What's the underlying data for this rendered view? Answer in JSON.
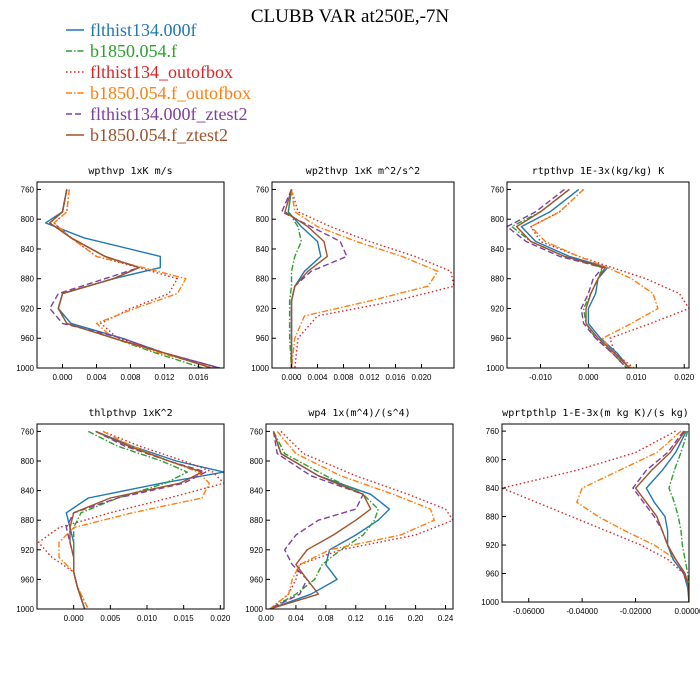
{
  "title": "CLUBB VAR at250E,-7N",
  "legend": [
    {
      "label": "flthist134.000f",
      "color": "#1f77b4",
      "dash": "solid"
    },
    {
      "label": "b1850.054.f",
      "color": "#2ca02c",
      "dash": "dashdot"
    },
    {
      "label": "flthist134_outofbox",
      "color": "#d62728",
      "dash": "dot"
    },
    {
      "label": "b1850.054.f_outofbox",
      "color": "#ff7f0e",
      "dash": "dashdot"
    },
    {
      "label": "flthist134.000f_ztest2",
      "color": "#7f3fa0",
      "dash": "dash"
    },
    {
      "label": "b1850.054.f_ztest2",
      "color": "#a0522d",
      "dash": "solid"
    }
  ],
  "chart_data": [
    {
      "type": "line",
      "title": "wpthvp  1xK m/s",
      "xlim": [
        -0.003,
        0.019
      ],
      "ylim": [
        1000,
        750
      ],
      "xticks": [
        0.0,
        0.004,
        0.008,
        0.012,
        0.016
      ],
      "xtick_labels": [
        "0.000",
        "0.004",
        "0.008",
        "0.012",
        "0.016"
      ],
      "yticks": [
        760,
        800,
        840,
        880,
        920,
        960,
        1000
      ],
      "y": [
        760,
        790,
        805,
        825,
        850,
        865,
        880,
        900,
        920,
        940,
        960,
        980,
        1000
      ],
      "series": [
        {
          "values": [
            0.0005,
            0.0,
            -0.002,
            0.0025,
            0.0115,
            0.0115,
            0.006,
            0.0,
            -0.0005,
            0.001,
            0.007,
            0.012,
            0.0185
          ]
        },
        {
          "values": [
            0.0005,
            0.0,
            -0.0015,
            0.001,
            0.005,
            0.009,
            0.006,
            0.0,
            -0.0005,
            0.0005,
            0.006,
            0.011,
            0.0165
          ]
        },
        {
          "values": [
            0.0008,
            0.0005,
            -0.001,
            0.001,
            0.004,
            0.009,
            0.0135,
            0.0125,
            0.008,
            0.0045,
            0.0065,
            0.012,
            0.0185
          ]
        },
        {
          "values": [
            0.0008,
            0.0005,
            -0.001,
            0.001,
            0.004,
            0.0095,
            0.0145,
            0.0135,
            0.0085,
            0.004,
            0.006,
            0.0115,
            0.018
          ]
        },
        {
          "values": [
            0.0005,
            0.0,
            -0.0015,
            0.001,
            0.005,
            0.009,
            0.005,
            -0.0005,
            -0.0015,
            0.0,
            0.007,
            0.012,
            0.0185
          ]
        },
        {
          "values": [
            0.0005,
            0.0,
            -0.0015,
            0.001,
            0.005,
            0.009,
            0.006,
            0.0,
            -0.0005,
            0.0005,
            0.006,
            0.012,
            0.0175
          ]
        }
      ]
    },
    {
      "type": "line",
      "title": "wp2thvp  1xK m^2/s^2",
      "xlim": [
        -0.003,
        0.025
      ],
      "ylim": [
        1000,
        750
      ],
      "xticks": [
        0.0,
        0.004,
        0.008,
        0.012,
        0.016,
        0.02
      ],
      "xtick_labels": [
        "0.000",
        "0.004",
        "0.008",
        "0.012",
        "0.016",
        "0.020"
      ],
      "yticks": [
        760,
        800,
        840,
        880,
        920,
        960,
        1000
      ],
      "y": [
        760,
        790,
        810,
        830,
        850,
        870,
        890,
        910,
        930,
        960,
        1000
      ],
      "series": [
        {
          "values": [
            0.0,
            -0.0005,
            0.0015,
            0.004,
            0.0045,
            0.002,
            0.0005,
            0.0,
            0.0,
            0.0,
            0.0
          ]
        },
        {
          "values": [
            0.0,
            -0.0005,
            0.001,
            0.0015,
            0.0005,
            0.0,
            0.0,
            -0.0003,
            -0.0003,
            -0.0003,
            0.0
          ]
        },
        {
          "values": [
            0.0,
            0.001,
            0.006,
            0.012,
            0.019,
            0.0245,
            0.025,
            0.016,
            0.004,
            0.001,
            0.0005
          ]
        },
        {
          "values": [
            0.0,
            0.0005,
            0.004,
            0.01,
            0.017,
            0.0225,
            0.021,
            0.012,
            0.002,
            0.0005,
            0.0
          ]
        },
        {
          "values": [
            0.0,
            -0.0015,
            0.003,
            0.0075,
            0.0085,
            0.003,
            0.0005,
            0.0,
            0.0,
            0.0,
            0.0
          ]
        },
        {
          "values": [
            0.0,
            -0.001,
            0.0025,
            0.005,
            0.0055,
            0.0025,
            0.0005,
            0.0,
            0.0,
            0.0,
            0.0
          ]
        }
      ]
    },
    {
      "type": "line",
      "title": "rtpthvp  1E-3x(kg/kg) K",
      "xlim": [
        -0.017,
        0.021
      ],
      "ylim": [
        1000,
        750
      ],
      "xticks": [
        -0.01,
        0.0,
        0.01,
        0.02
      ],
      "xtick_labels": [
        "-0.010",
        "0.000",
        "0.010",
        "0.020"
      ],
      "yticks": [
        760,
        800,
        840,
        880,
        920,
        960,
        1000
      ],
      "y": [
        760,
        790,
        810,
        830,
        850,
        865,
        880,
        900,
        920,
        940,
        960,
        980,
        1000
      ],
      "series": [
        {
          "values": [
            -0.002,
            -0.008,
            -0.014,
            -0.011,
            -0.004,
            0.004,
            0.002,
            0.0015,
            0.0,
            0.0,
            0.0025,
            0.006,
            0.0085
          ]
        },
        {
          "values": [
            -0.004,
            -0.01,
            -0.016,
            -0.012,
            -0.005,
            0.003,
            0.002,
            0.0005,
            -0.001,
            -0.0005,
            0.0015,
            0.005,
            0.008
          ]
        },
        {
          "values": [
            -0.001,
            -0.006,
            -0.012,
            -0.01,
            -0.002,
            0.005,
            0.012,
            0.019,
            0.021,
            0.013,
            0.0045,
            0.0055,
            0.0095
          ]
        },
        {
          "values": [
            -0.001,
            -0.006,
            -0.012,
            -0.009,
            -0.002,
            0.004,
            0.009,
            0.0135,
            0.0145,
            0.009,
            0.003,
            0.005,
            0.009
          ]
        },
        {
          "values": [
            -0.005,
            -0.011,
            -0.017,
            -0.013,
            -0.006,
            0.003,
            0.001,
            0.0,
            -0.0015,
            -0.001,
            0.0015,
            0.005,
            0.008
          ]
        },
        {
          "values": [
            -0.004,
            -0.01,
            -0.015,
            -0.012,
            -0.005,
            0.0035,
            0.002,
            0.0005,
            -0.0005,
            -0.0005,
            0.002,
            0.0055,
            0.0085
          ]
        }
      ]
    },
    {
      "type": "line",
      "title": "thlpthvp  1xK^2",
      "xlim": [
        -0.005,
        0.0205
      ],
      "ylim": [
        1000,
        750
      ],
      "xticks": [
        0.0,
        0.005,
        0.01,
        0.015,
        0.02
      ],
      "xtick_labels": [
        "0.000",
        "0.005",
        "0.010",
        "0.015",
        "0.020"
      ],
      "yticks": [
        760,
        800,
        840,
        880,
        920,
        960,
        1000
      ],
      "y": [
        760,
        780,
        800,
        815,
        830,
        850,
        870,
        890,
        910,
        930,
        950,
        970,
        1000
      ],
      "series": [
        {
          "values": [
            0.003,
            0.008,
            0.014,
            0.0205,
            0.012,
            0.002,
            -0.001,
            -0.0005,
            0.0,
            0.0,
            0.0,
            0.0005,
            0.0015
          ]
        },
        {
          "values": [
            0.002,
            0.006,
            0.012,
            0.0155,
            0.0125,
            0.006,
            0.001,
            0.0,
            0.0,
            0.0,
            0.0,
            0.0005,
            0.0015
          ]
        },
        {
          "values": [
            0.004,
            0.009,
            0.015,
            0.019,
            0.0205,
            0.013,
            0.005,
            -0.002,
            -0.0048,
            -0.003,
            0.0,
            0.0005,
            0.002
          ]
        },
        {
          "values": [
            0.004,
            0.008,
            0.013,
            0.017,
            0.0185,
            0.0175,
            0.008,
            0.0,
            -0.002,
            -0.002,
            0.0,
            0.0005,
            0.002
          ]
        },
        {
          "values": [
            0.003,
            0.007,
            0.013,
            0.018,
            0.015,
            0.006,
            0.0,
            -0.001,
            -0.0005,
            0.0,
            0.0,
            0.0005,
            0.0015
          ]
        },
        {
          "values": [
            0.003,
            0.0075,
            0.013,
            0.0175,
            0.0145,
            0.005,
            0.0,
            -0.0005,
            -0.0005,
            0.0,
            0.0,
            0.0005,
            0.0015
          ]
        }
      ]
    },
    {
      "type": "line",
      "title": "wp4  1x(m^4)/(s^4)",
      "xlim": [
        0.0,
        0.25
      ],
      "ylim": [
        1000,
        750
      ],
      "xticks": [
        0.0,
        0.04,
        0.08,
        0.12,
        0.16,
        0.2,
        0.24
      ],
      "xtick_labels": [
        "0.00",
        "0.04",
        "0.08",
        "0.12",
        "0.16",
        "0.20",
        "0.24"
      ],
      "yticks": [
        760,
        800,
        840,
        880,
        920,
        960,
        1000
      ],
      "y": [
        760,
        790,
        820,
        845,
        865,
        880,
        900,
        920,
        940,
        960,
        980,
        1000
      ],
      "series": [
        {
          "values": [
            0.01,
            0.02,
            0.07,
            0.14,
            0.165,
            0.15,
            0.12,
            0.085,
            0.08,
            0.095,
            0.06,
            0.005
          ]
        },
        {
          "values": [
            0.01,
            0.025,
            0.08,
            0.13,
            0.15,
            0.145,
            0.13,
            0.1,
            0.075,
            0.065,
            0.04,
            0.005
          ]
        },
        {
          "values": [
            0.02,
            0.05,
            0.12,
            0.19,
            0.24,
            0.25,
            0.2,
            0.1,
            0.045,
            0.04,
            0.03,
            0.005
          ]
        },
        {
          "values": [
            0.015,
            0.04,
            0.1,
            0.17,
            0.22,
            0.225,
            0.18,
            0.085,
            0.045,
            0.035,
            0.03,
            0.005
          ]
        },
        {
          "values": [
            0.01,
            0.015,
            0.06,
            0.13,
            0.12,
            0.07,
            0.04,
            0.025,
            0.035,
            0.055,
            0.045,
            0.005
          ]
        },
        {
          "values": [
            0.01,
            0.02,
            0.07,
            0.13,
            0.14,
            0.12,
            0.09,
            0.055,
            0.04,
            0.055,
            0.07,
            0.005
          ]
        }
      ]
    },
    {
      "type": "line",
      "title": "wprtpthlp  1-E-3x(m kg K)/(s kg)",
      "xlim": [
        -0.07,
        0.0
      ],
      "ylim": [
        1000,
        750
      ],
      "xticks": [
        -0.06,
        -0.04,
        -0.02,
        0.0
      ],
      "xtick_labels": [
        "-0.06000",
        "-0.04000",
        "-0.02000",
        "0.00000"
      ],
      "yticks": [
        760,
        800,
        840,
        880,
        920,
        960,
        1000
      ],
      "y": [
        760,
        790,
        815,
        840,
        860,
        880,
        900,
        920,
        940,
        960,
        980,
        1000
      ],
      "series": [
        {
          "values": [
            -0.001,
            -0.005,
            -0.01,
            -0.016,
            -0.013,
            -0.009,
            -0.008,
            -0.008,
            -0.006,
            -0.002,
            -0.0005,
            0.0
          ]
        },
        {
          "values": [
            -0.0005,
            -0.003,
            -0.0055,
            -0.0075,
            -0.0055,
            -0.004,
            -0.003,
            -0.0025,
            -0.0015,
            -0.0005,
            0.0,
            0.0
          ]
        },
        {
          "values": [
            -0.005,
            -0.02,
            -0.042,
            -0.07,
            -0.057,
            -0.044,
            -0.031,
            -0.018,
            -0.008,
            -0.002,
            0.0,
            0.0
          ]
        },
        {
          "values": [
            -0.003,
            -0.012,
            -0.026,
            -0.04,
            -0.042,
            -0.034,
            -0.024,
            -0.013,
            -0.005,
            -0.0015,
            0.0,
            0.0
          ]
        },
        {
          "values": [
            -0.002,
            -0.008,
            -0.016,
            -0.021,
            -0.017,
            -0.013,
            -0.01,
            -0.008,
            -0.005,
            -0.0015,
            0.0,
            0.0
          ]
        },
        {
          "values": [
            -0.0015,
            -0.007,
            -0.014,
            -0.02,
            -0.016,
            -0.012,
            -0.01,
            -0.008,
            -0.005,
            -0.0015,
            0.0,
            0.0
          ]
        }
      ]
    }
  ]
}
